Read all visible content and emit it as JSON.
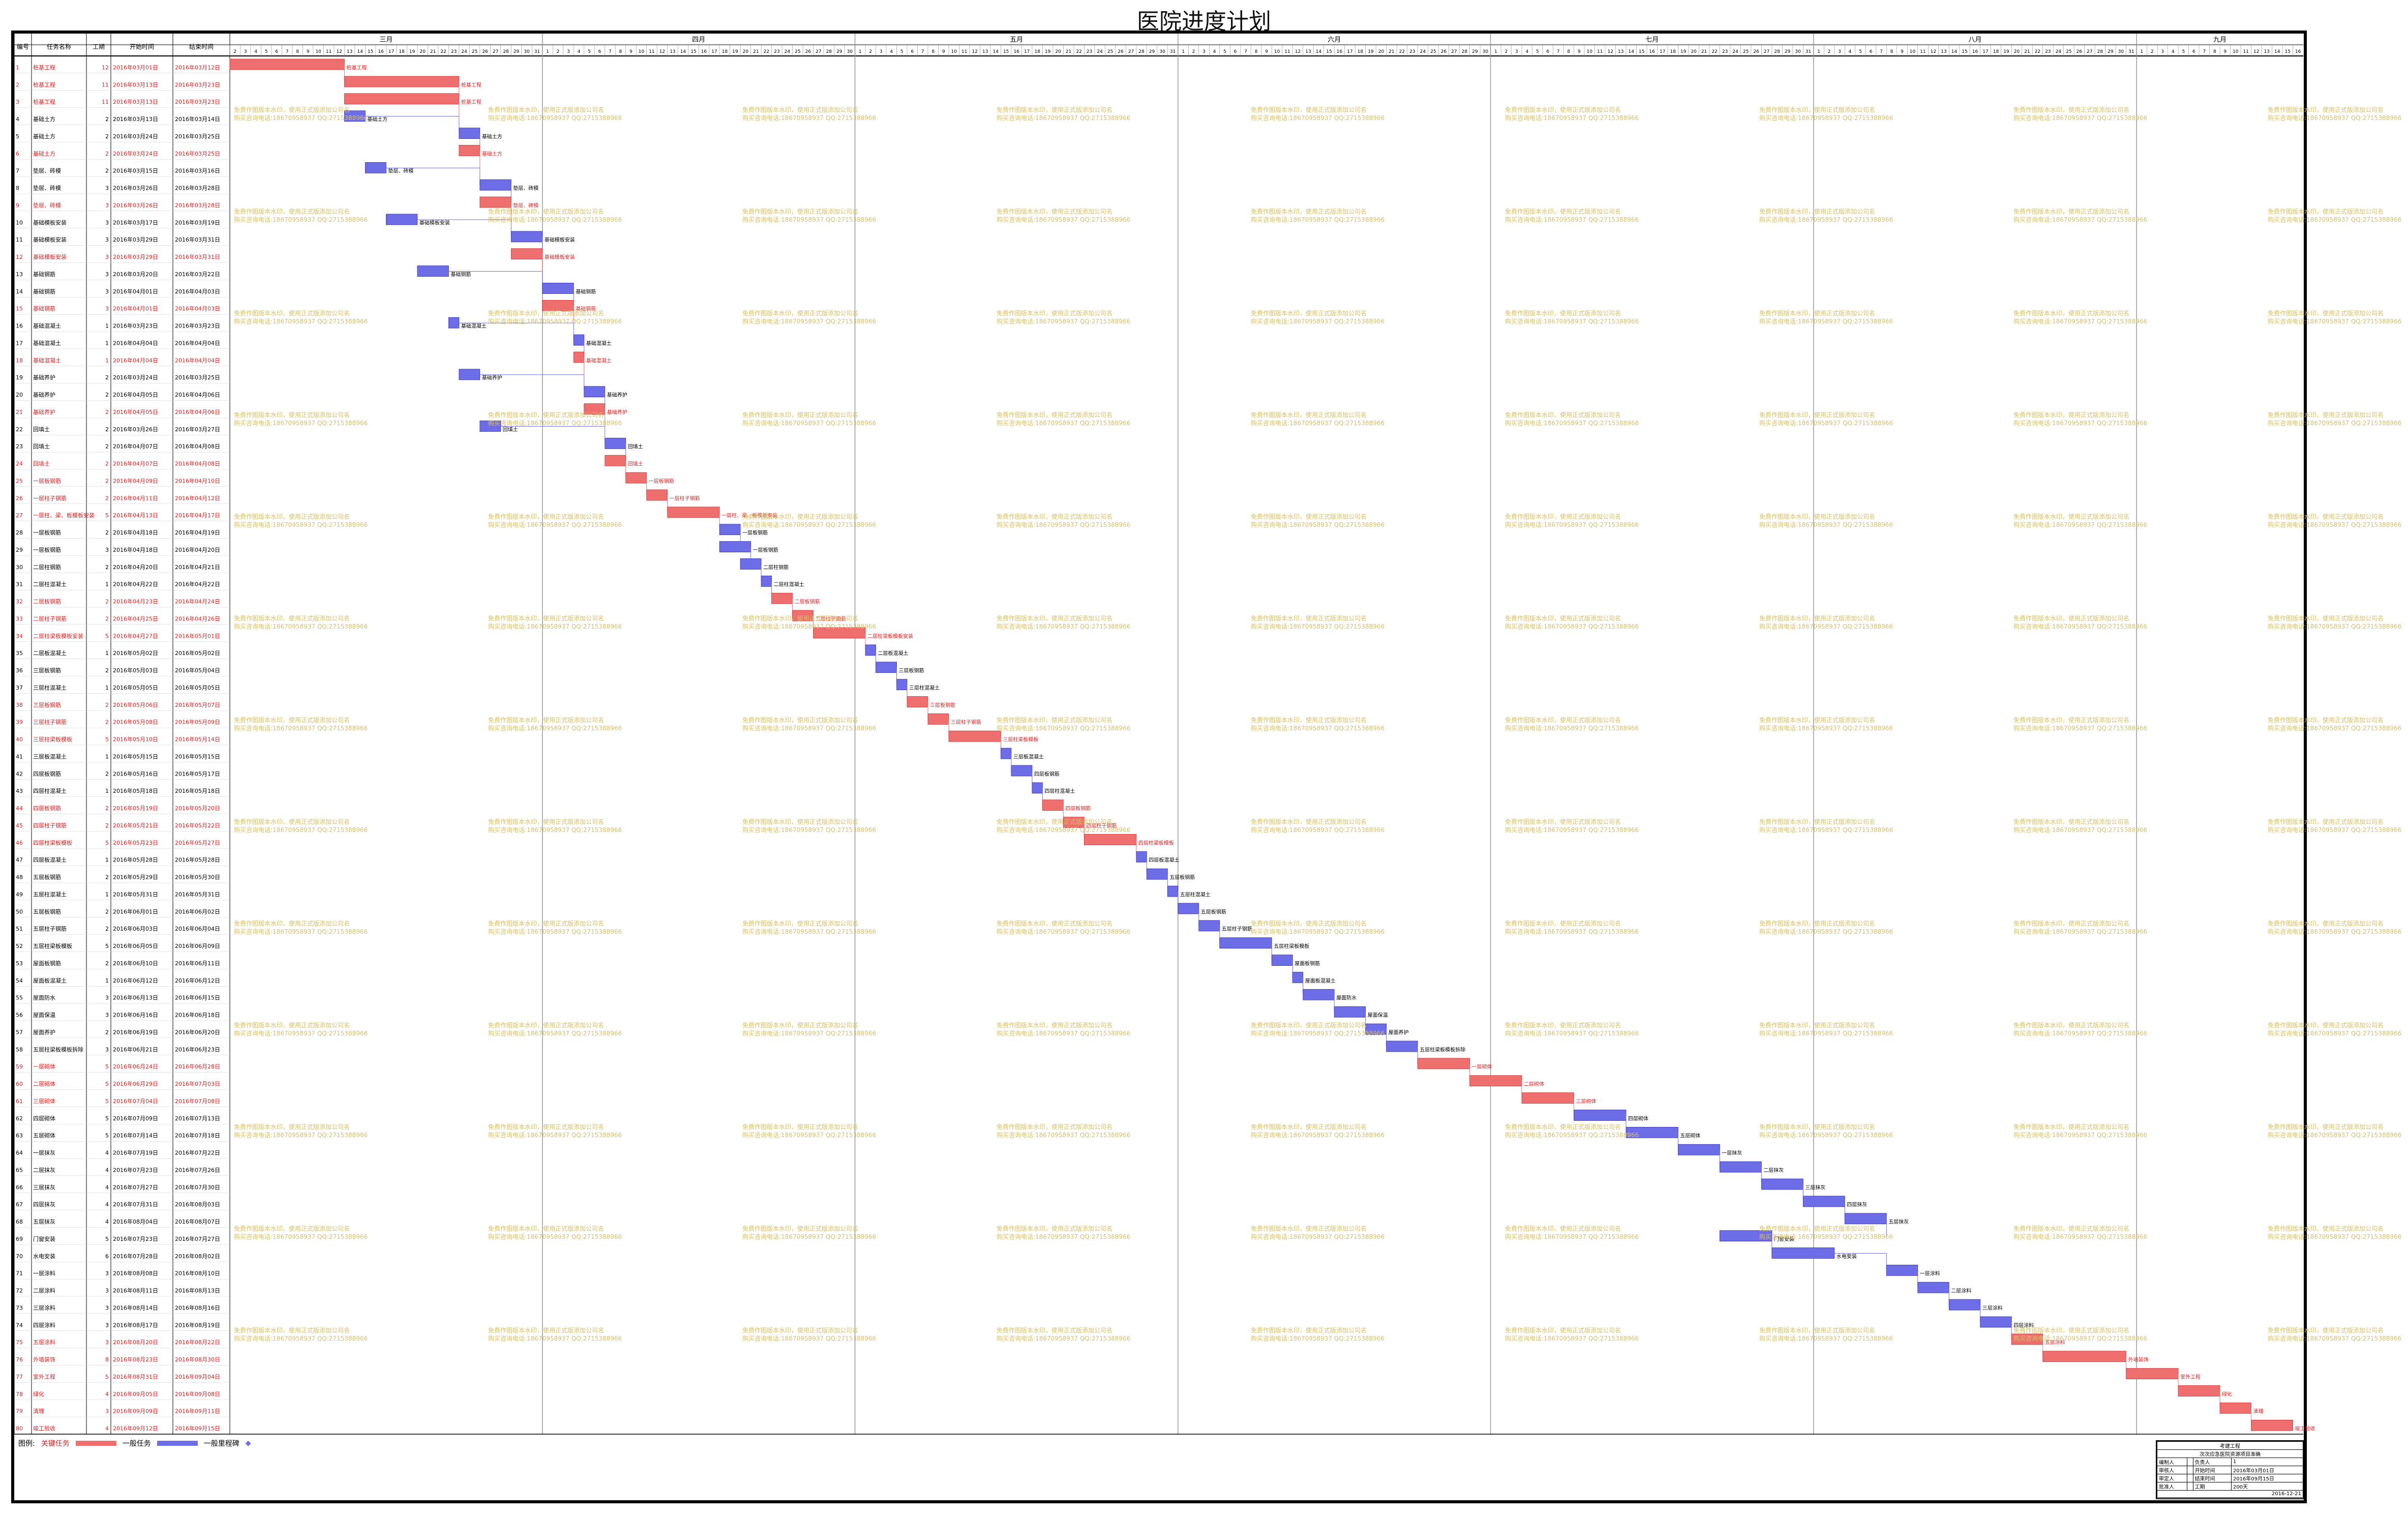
{
  "title": "医院进度计划",
  "columns": [
    "编号",
    "任务名称",
    "工期",
    "开始时间",
    "结束时间"
  ],
  "months": [
    "三月",
    "四月",
    "五月",
    "六月",
    "七月",
    "八月",
    "九月"
  ],
  "month_days": [
    31,
    30,
    31,
    30,
    31,
    31,
    30
  ],
  "first_day": 2,
  "last_day": 16,
  "watermark": [
    "免费作图版本水印，使用正式版添加公司名",
    "购买咨询电话:18670958937 QQ:2715388966"
  ],
  "colors": {
    "critical": "#ef6e6e",
    "normal": "#6d6de8",
    "critical_text": "#e02020",
    "normal_text": "#000000",
    "grid": "#c8c8c8",
    "watermark": "#d7c068"
  },
  "legend": {
    "label": "图例:",
    "critical": "关键任务",
    "normal": "一般任务",
    "milestone": "一般里程碑"
  },
  "info": {
    "header1": "考建工程",
    "header2": "次次应急医院资源项目准确",
    "rows": [
      [
        "编制人",
        "",
        "负责人",
        "1"
      ],
      [
        "审核人",
        "",
        "开始时间",
        "2016年03月01日"
      ],
      [
        "审定人",
        "",
        "结束时间",
        "2016年09月15日"
      ],
      [
        "批准人",
        "",
        "工期",
        "200天"
      ]
    ],
    "footer": "2016-12-21"
  },
  "tasks": [
    {
      "id": 1,
      "name": "桩基工程",
      "dur": "12",
      "start": "2016年03月01日",
      "end": "2016年03月12日",
      "crit": true
    },
    {
      "id": 2,
      "name": "桩基工程",
      "dur": "11",
      "start": "2016年03月13日",
      "end": "2016年03月23日",
      "crit": true
    },
    {
      "id": 3,
      "name": "桩基工程",
      "dur": "11",
      "start": "2016年03月13日",
      "end": "2016年03月23日",
      "crit": true
    },
    {
      "id": 4,
      "name": "基础土方",
      "dur": "2",
      "start": "2016年03月13日",
      "end": "2016年03月14日",
      "crit": false
    },
    {
      "id": 5,
      "name": "基础土方",
      "dur": "2",
      "start": "2016年03月24日",
      "end": "2016年03月25日",
      "crit": false
    },
    {
      "id": 6,
      "name": "基础土方",
      "dur": "2",
      "start": "2016年03月24日",
      "end": "2016年03月25日",
      "crit": true
    },
    {
      "id": 7,
      "name": "垫层、砖模",
      "dur": "2",
      "start": "2016年03月15日",
      "end": "2016年03月16日",
      "crit": false
    },
    {
      "id": 8,
      "name": "垫层、砖模",
      "dur": "3",
      "start": "2016年03月26日",
      "end": "2016年03月28日",
      "crit": false
    },
    {
      "id": 9,
      "name": "垫层、砖模",
      "dur": "3",
      "start": "2016年03月26日",
      "end": "2016年03月28日",
      "crit": true
    },
    {
      "id": 10,
      "name": "基础模板安装",
      "dur": "3",
      "start": "2016年03月17日",
      "end": "2016年03月19日",
      "crit": false
    },
    {
      "id": 11,
      "name": "基础模板安装",
      "dur": "3",
      "start": "2016年03月29日",
      "end": "2016年03月31日",
      "crit": false
    },
    {
      "id": 12,
      "name": "基础模板安装",
      "dur": "3",
      "start": "2016年03月29日",
      "end": "2016年03月31日",
      "crit": true
    },
    {
      "id": 13,
      "name": "基础钢筋",
      "dur": "3",
      "start": "2016年03月20日",
      "end": "2016年03月22日",
      "crit": false
    },
    {
      "id": 14,
      "name": "基础钢筋",
      "dur": "3",
      "start": "2016年04月01日",
      "end": "2016年04月03日",
      "crit": false
    },
    {
      "id": 15,
      "name": "基础钢筋",
      "dur": "3",
      "start": "2016年04月01日",
      "end": "2016年04月03日",
      "crit": true
    },
    {
      "id": 16,
      "name": "基础混凝土",
      "dur": "1",
      "start": "2016年03月23日",
      "end": "2016年03月23日",
      "crit": false
    },
    {
      "id": 17,
      "name": "基础混凝土",
      "dur": "1",
      "start": "2016年04月04日",
      "end": "2016年04月04日",
      "crit": false
    },
    {
      "id": 18,
      "name": "基础混凝土",
      "dur": "1",
      "start": "2016年04月04日",
      "end": "2016年04月04日",
      "crit": true
    },
    {
      "id": 19,
      "name": "基础养护",
      "dur": "2",
      "start": "2016年03月24日",
      "end": "2016年03月25日",
      "crit": false
    },
    {
      "id": 20,
      "name": "基础养护",
      "dur": "2",
      "start": "2016年04月05日",
      "end": "2016年04月06日",
      "crit": false
    },
    {
      "id": 21,
      "name": "基础养护",
      "dur": "2",
      "start": "2016年04月05日",
      "end": "2016年04月06日",
      "crit": true
    },
    {
      "id": 22,
      "name": "回填土",
      "dur": "2",
      "start": "2016年03月26日",
      "end": "2016年03月27日",
      "crit": false
    },
    {
      "id": 23,
      "name": "回填土",
      "dur": "2",
      "start": "2016年04月07日",
      "end": "2016年04月08日",
      "crit": false
    },
    {
      "id": 24,
      "name": "回填土",
      "dur": "2",
      "start": "2016年04月07日",
      "end": "2016年04月08日",
      "crit": true
    },
    {
      "id": 25,
      "name": "一层板钢筋",
      "dur": "2",
      "start": "2016年04月09日",
      "end": "2016年04月10日",
      "crit": true
    },
    {
      "id": 26,
      "name": "一层柱子钢筋",
      "dur": "2",
      "start": "2016年04月11日",
      "end": "2016年04月12日",
      "crit": true
    },
    {
      "id": 27,
      "name": "一层柱、梁、板模板安装",
      "dur": "5",
      "start": "2016年04月13日",
      "end": "2016年04月17日",
      "crit": true
    },
    {
      "id": 28,
      "name": "一层板钢筋",
      "dur": "2",
      "start": "2016年04月18日",
      "end": "2016年04月19日",
      "crit": false
    },
    {
      "id": 29,
      "name": "一层板钢筋",
      "dur": "3",
      "start": "2016年04月18日",
      "end": "2016年04月20日",
      "crit": false
    },
    {
      "id": 30,
      "name": "二层柱钢筋",
      "dur": "2",
      "start": "2016年04月20日",
      "end": "2016年04月21日",
      "crit": false
    },
    {
      "id": 31,
      "name": "二层柱混凝土",
      "dur": "1",
      "start": "2016年04月22日",
      "end": "2016年04月22日",
      "crit": false
    },
    {
      "id": 32,
      "name": "二层板钢筋",
      "dur": "2",
      "start": "2016年04月23日",
      "end": "2016年04月24日",
      "crit": true
    },
    {
      "id": 33,
      "name": "二层柱子钢筋",
      "dur": "2",
      "start": "2016年04月25日",
      "end": "2016年04月26日",
      "crit": true
    },
    {
      "id": 34,
      "name": "二层柱梁板模板安装",
      "dur": "5",
      "start": "2016年04月27日",
      "end": "2016年05月01日",
      "crit": true
    },
    {
      "id": 35,
      "name": "二层板混凝土",
      "dur": "1",
      "start": "2016年05月02日",
      "end": "2016年05月02日",
      "crit": false
    },
    {
      "id": 36,
      "name": "三层板钢筋",
      "dur": "2",
      "start": "2016年05月03日",
      "end": "2016年05月04日",
      "crit": false
    },
    {
      "id": 37,
      "name": "三层柱混凝土",
      "dur": "1",
      "start": "2016年05月05日",
      "end": "2016年05月05日",
      "crit": false
    },
    {
      "id": 38,
      "name": "三层板钢筋",
      "dur": "2",
      "start": "2016年05月06日",
      "end": "2016年05月07日",
      "crit": true
    },
    {
      "id": 39,
      "name": "三层柱子钢筋",
      "dur": "2",
      "start": "2016年05月08日",
      "end": "2016年05月09日",
      "crit": true
    },
    {
      "id": 40,
      "name": "三层柱梁板模板",
      "dur": "5",
      "start": "2016年05月10日",
      "end": "2016年05月14日",
      "crit": true
    },
    {
      "id": 41,
      "name": "三层板混凝土",
      "dur": "1",
      "start": "2016年05月15日",
      "end": "2016年05月15日",
      "crit": false
    },
    {
      "id": 42,
      "name": "四层板钢筋",
      "dur": "2",
      "start": "2016年05月16日",
      "end": "2016年05月17日",
      "crit": false
    },
    {
      "id": 43,
      "name": "四层柱混凝土",
      "dur": "1",
      "start": "2016年05月18日",
      "end": "2016年05月18日",
      "crit": false
    },
    {
      "id": 44,
      "name": "四层板钢筋",
      "dur": "2",
      "start": "2016年05月19日",
      "end": "2016年05月20日",
      "crit": true
    },
    {
      "id": 45,
      "name": "四层柱子钢筋",
      "dur": "2",
      "start": "2016年05月21日",
      "end": "2016年05月22日",
      "crit": true
    },
    {
      "id": 46,
      "name": "四层柱梁板模板",
      "dur": "5",
      "start": "2016年05月23日",
      "end": "2016年05月27日",
      "crit": true
    },
    {
      "id": 47,
      "name": "四层板混凝土",
      "dur": "1",
      "start": "2016年05月28日",
      "end": "2016年05月28日",
      "crit": false
    },
    {
      "id": 48,
      "name": "五层板钢筋",
      "dur": "2",
      "start": "2016年05月29日",
      "end": "2016年05月30日",
      "crit": false
    },
    {
      "id": 49,
      "name": "五层柱混凝土",
      "dur": "1",
      "start": "2016年05月31日",
      "end": "2016年05月31日",
      "crit": false
    },
    {
      "id": 50,
      "name": "五层板钢筋",
      "dur": "2",
      "start": "2016年06月01日",
      "end": "2016年06月02日",
      "crit": false
    },
    {
      "id": 51,
      "name": "五层柱子钢筋",
      "dur": "2",
      "start": "2016年06月03日",
      "end": "2016年06月04日",
      "crit": false
    },
    {
      "id": 52,
      "name": "五层柱梁板模板",
      "dur": "5",
      "start": "2016年06月05日",
      "end": "2016年06月09日",
      "crit": false
    },
    {
      "id": 53,
      "name": "屋面板钢筋",
      "dur": "2",
      "start": "2016年06月10日",
      "end": "2016年06月11日",
      "crit": false
    },
    {
      "id": 54,
      "name": "屋面板混凝土",
      "dur": "1",
      "start": "2016年06月12日",
      "end": "2016年06月12日",
      "crit": false
    },
    {
      "id": 55,
      "name": "屋面防水",
      "dur": "3",
      "start": "2016年06月13日",
      "end": "2016年06月15日",
      "crit": false
    },
    {
      "id": 56,
      "name": "屋面保温",
      "dur": "3",
      "start": "2016年06月16日",
      "end": "2016年06月18日",
      "crit": false
    },
    {
      "id": 57,
      "name": "屋面养护",
      "dur": "2",
      "start": "2016年06月19日",
      "end": "2016年06月20日",
      "crit": false
    },
    {
      "id": 58,
      "name": "五层柱梁板模板拆除",
      "dur": "3",
      "start": "2016年06月21日",
      "end": "2016年06月23日",
      "crit": false
    },
    {
      "id": 59,
      "name": "一层砌体",
      "dur": "5",
      "start": "2016年06月24日",
      "end": "2016年06月28日",
      "crit": true
    },
    {
      "id": 60,
      "name": "二层砌体",
      "dur": "5",
      "start": "2016年06月29日",
      "end": "2016年07月03日",
      "crit": true
    },
    {
      "id": 61,
      "name": "三层砌体",
      "dur": "5",
      "start": "2016年07月04日",
      "end": "2016年07月08日",
      "crit": true
    },
    {
      "id": 62,
      "name": "四层砌体",
      "dur": "5",
      "start": "2016年07月09日",
      "end": "2016年07月13日",
      "crit": false
    },
    {
      "id": 63,
      "name": "五层砌体",
      "dur": "5",
      "start": "2016年07月14日",
      "end": "2016年07月18日",
      "crit": false
    },
    {
      "id": 64,
      "name": "一层抹灰",
      "dur": "4",
      "start": "2016年07月19日",
      "end": "2016年07月22日",
      "crit": false
    },
    {
      "id": 65,
      "name": "二层抹灰",
      "dur": "4",
      "start": "2016年07月23日",
      "end": "2016年07月26日",
      "crit": false
    },
    {
      "id": 66,
      "name": "三层抹灰",
      "dur": "4",
      "start": "2016年07月27日",
      "end": "2016年07月30日",
      "crit": false
    },
    {
      "id": 67,
      "name": "四层抹灰",
      "dur": "4",
      "start": "2016年07月31日",
      "end": "2016年08月03日",
      "crit": false
    },
    {
      "id": 68,
      "name": "五层抹灰",
      "dur": "4",
      "start": "2016年08月04日",
      "end": "2016年08月07日",
      "crit": false
    },
    {
      "id": 69,
      "name": "门窗安装",
      "dur": "5",
      "start": "2016年07月23日",
      "end": "2016年07月27日",
      "crit": false
    },
    {
      "id": 70,
      "name": "水电安装",
      "dur": "6",
      "start": "2016年07月28日",
      "end": "2016年08月02日",
      "crit": false
    },
    {
      "id": 71,
      "name": "一层涂料",
      "dur": "3",
      "start": "2016年08月08日",
      "end": "2016年08月10日",
      "crit": false
    },
    {
      "id": 72,
      "name": "二层涂料",
      "dur": "3",
      "start": "2016年08月11日",
      "end": "2016年08月13日",
      "crit": false
    },
    {
      "id": 73,
      "name": "三层涂料",
      "dur": "3",
      "start": "2016年08月14日",
      "end": "2016年08月16日",
      "crit": false
    },
    {
      "id": 74,
      "name": "四层涂料",
      "dur": "3",
      "start": "2016年08月17日",
      "end": "2016年08月19日",
      "crit": false
    },
    {
      "id": 75,
      "name": "五层涂料",
      "dur": "3",
      "start": "2016年08月20日",
      "end": "2016年08月22日",
      "crit": true
    },
    {
      "id": 76,
      "name": "外墙装饰",
      "dur": "8",
      "start": "2016年08月23日",
      "end": "2016年08月30日",
      "crit": true
    },
    {
      "id": 77,
      "name": "室外工程",
      "dur": "5",
      "start": "2016年08月31日",
      "end": "2016年09月04日",
      "crit": true
    },
    {
      "id": 78,
      "name": "绿化",
      "dur": "4",
      "start": "2016年09月05日",
      "end": "2016年09月08日",
      "crit": true
    },
    {
      "id": 79,
      "name": "清理",
      "dur": "3",
      "start": "2016年09月09日",
      "end": "2016年09月11日",
      "crit": true
    },
    {
      "id": 80,
      "name": "竣工验收",
      "dur": "4",
      "start": "2016年09月12日",
      "end": "2016年09月15日",
      "crit": true
    }
  ]
}
